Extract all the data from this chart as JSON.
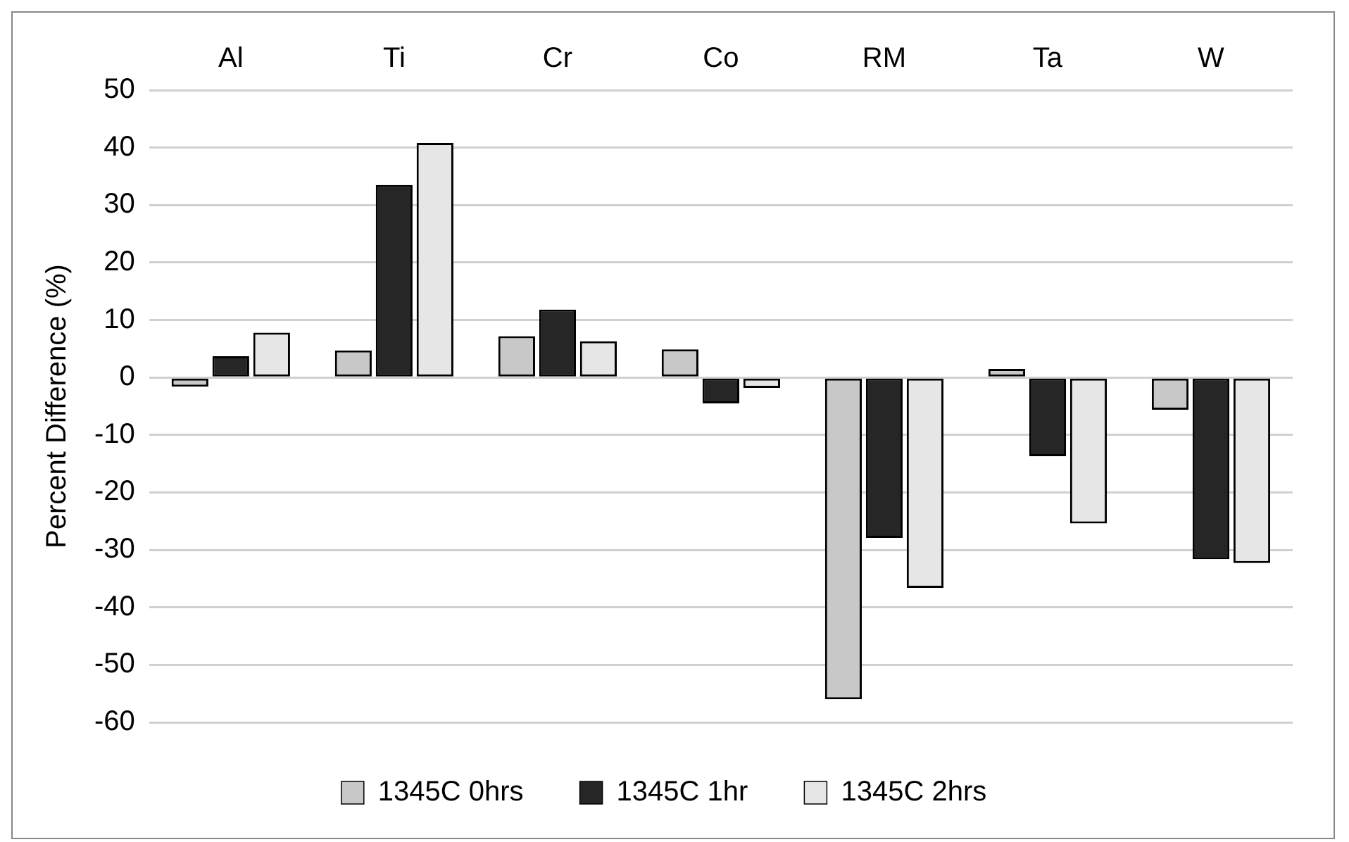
{
  "chart_data": {
    "type": "bar",
    "ylabel": "Percent Difference (%)",
    "categories": [
      "Al",
      "Ti",
      "Cr",
      "Co",
      "RM",
      "Ta",
      "W"
    ],
    "series": [
      {
        "name": "1345C 0hrs",
        "color": "#c8c8c8",
        "values": [
          -1.6,
          4.7,
          7.2,
          4.9,
          -56,
          1.5,
          -5.6
        ]
      },
      {
        "name": "1345C 1hr",
        "color": "#262626",
        "values": [
          3.7,
          33.5,
          11.8,
          -4.5,
          -27.9,
          -13.7,
          -31.6
        ]
      },
      {
        "name": "1345C 2hrs",
        "color": "#e6e6e6",
        "values": [
          7.8,
          40.8,
          6.3,
          -1.8,
          -36.6,
          -25.4,
          -32.3
        ]
      }
    ],
    "ylim": [
      -60,
      50
    ],
    "yticks": [
      -60,
      -50,
      -40,
      -30,
      -20,
      -10,
      0,
      10,
      20,
      30,
      40,
      50
    ],
    "grid": "y",
    "legend": "bottom"
  }
}
